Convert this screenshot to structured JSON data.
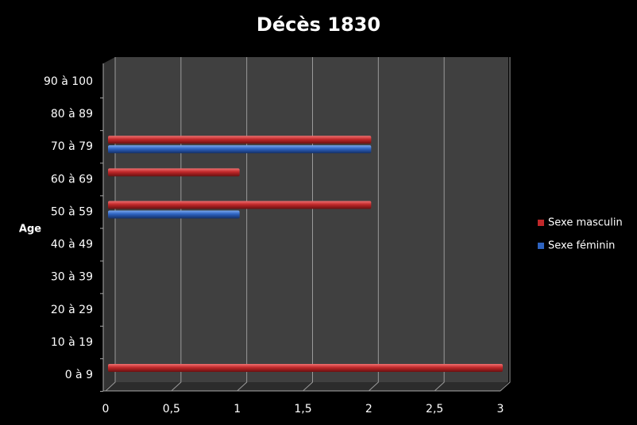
{
  "chart_data": {
    "type": "bar",
    "orientation": "horizontal",
    "title": "Décès 1830",
    "y_label": "Age",
    "categories": [
      "0 à 9",
      "10 à 19",
      "20 à 29",
      "30 à 39",
      "40 à 49",
      "50 à 59",
      "60 à 69",
      "70 à 79",
      "80 à 89",
      "90 à 100"
    ],
    "series": [
      {
        "name": "Sexe masculin",
        "color": "#c0282a",
        "values": [
          3,
          0,
          0,
          0,
          0,
          2,
          1,
          2,
          0,
          0
        ]
      },
      {
        "name": "Sexe féminin",
        "color": "#2e63c0",
        "values": [
          0,
          0,
          0,
          0,
          0,
          1,
          0,
          2,
          0,
          0
        ]
      }
    ],
    "xlim": [
      0,
      3
    ],
    "xticks": [
      0,
      {
        "value": 0.5,
        "label": "0,5"
      },
      1,
      {
        "value": 1.5,
        "label": "1,5"
      },
      2,
      {
        "value": 2.5,
        "label": "2,5"
      },
      3
    ],
    "grid": true,
    "legend": "right"
  }
}
